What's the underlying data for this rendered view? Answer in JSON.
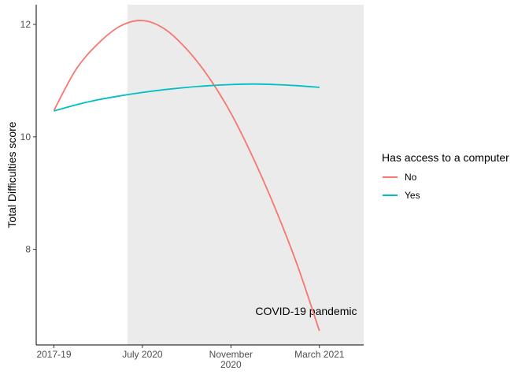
{
  "chart_data": {
    "type": "line",
    "ylabel": "Total Difficulties score",
    "xlabel": "",
    "x_ticks": [
      {
        "pos": 0,
        "label": [
          "2017-19"
        ]
      },
      {
        "pos": 1,
        "label": [
          "July 2020"
        ]
      },
      {
        "pos": 2,
        "label": [
          "November",
          "2020"
        ]
      },
      {
        "pos": 3,
        "label": [
          "March 2021"
        ]
      }
    ],
    "xlim": [
      -0.2,
      3.5
    ],
    "ylim": [
      6.3,
      12.35
    ],
    "y_ticks": [
      8,
      10,
      12
    ],
    "shaded_region": {
      "from": 0.83,
      "to": 3.5,
      "color": "#ebebeb",
      "label": "COVID-19 pandemic",
      "label_pos": [
        2.85,
        6.9
      ]
    },
    "legend": {
      "title": "Has access to a computer",
      "placement": "right"
    },
    "series": [
      {
        "name": "No",
        "color": "#f8766d",
        "x": [
          0,
          0.25,
          0.5,
          0.75,
          1,
          1.25,
          1.5,
          1.75,
          2,
          2.25,
          2.5,
          2.75,
          3
        ],
        "y": [
          10.47,
          11.2,
          11.66,
          11.97,
          12.07,
          11.92,
          11.56,
          11.06,
          10.42,
          9.63,
          8.73,
          7.72,
          6.55
        ]
      },
      {
        "name": "Yes",
        "color": "#00bfc4",
        "x": [
          0,
          0.25,
          0.5,
          0.75,
          1,
          1.25,
          1.5,
          1.75,
          2,
          2.25,
          2.5,
          2.75,
          3
        ],
        "y": [
          10.46,
          10.57,
          10.66,
          10.73,
          10.79,
          10.84,
          10.88,
          10.91,
          10.93,
          10.94,
          10.93,
          10.91,
          10.88
        ]
      }
    ]
  }
}
